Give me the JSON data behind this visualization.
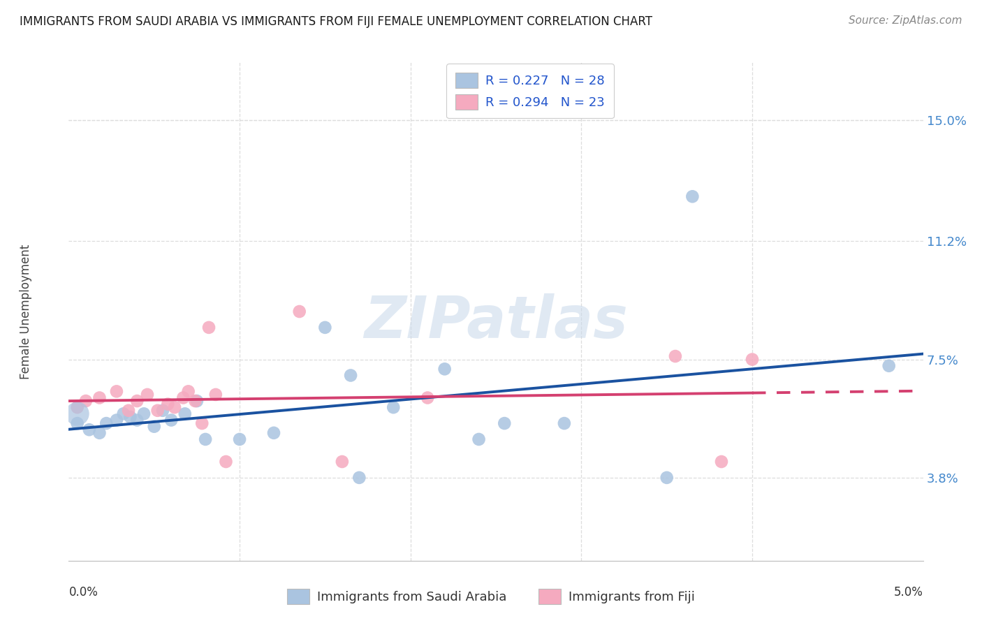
{
  "title": "IMMIGRANTS FROM SAUDI ARABIA VS IMMIGRANTS FROM FIJI FEMALE UNEMPLOYMENT CORRELATION CHART",
  "source": "Source: ZipAtlas.com",
  "ylabel": "Female Unemployment",
  "ylabel_ticks": [
    "3.8%",
    "7.5%",
    "11.2%",
    "15.0%"
  ],
  "ylabel_tick_vals": [
    3.8,
    7.5,
    11.2,
    15.0
  ],
  "xlim": [
    0.0,
    5.0
  ],
  "ylim": [
    1.2,
    16.8
  ],
  "legend1_R": "R = 0.227",
  "legend1_N": "N = 28",
  "legend2_R": "R = 0.294",
  "legend2_N": "N = 23",
  "saudi_color": "#aac4e0",
  "fiji_color": "#f5aabf",
  "saudi_line_color": "#1a52a0",
  "fiji_line_color": "#d44070",
  "watermark": "ZIPatlas",
  "saudi_x": [
    0.05,
    0.12,
    0.18,
    0.22,
    0.28,
    0.32,
    0.36,
    0.4,
    0.44,
    0.5,
    0.55,
    0.6,
    0.68,
    0.75,
    0.8,
    1.0,
    1.2,
    1.5,
    1.65,
    1.7,
    1.9,
    2.2,
    2.4,
    2.55,
    2.9,
    3.5,
    3.65,
    4.8
  ],
  "saudi_y": [
    5.5,
    5.3,
    5.2,
    5.5,
    5.6,
    5.8,
    5.7,
    5.6,
    5.8,
    5.4,
    5.9,
    5.6,
    5.8,
    6.2,
    5.0,
    5.0,
    5.2,
    8.5,
    7.0,
    3.8,
    6.0,
    7.2,
    5.0,
    5.5,
    5.5,
    3.8,
    12.6,
    7.3
  ],
  "fiji_x": [
    0.05,
    0.1,
    0.18,
    0.28,
    0.35,
    0.4,
    0.46,
    0.52,
    0.58,
    0.62,
    0.67,
    0.7,
    0.74,
    0.78,
    0.82,
    0.86,
    0.92,
    1.35,
    1.6,
    2.1,
    3.55,
    3.82,
    4.0
  ],
  "fiji_y": [
    6.0,
    6.2,
    6.3,
    6.5,
    5.9,
    6.2,
    6.4,
    5.9,
    6.1,
    6.0,
    6.3,
    6.5,
    6.2,
    5.5,
    8.5,
    6.4,
    4.3,
    9.0,
    4.3,
    6.3,
    7.6,
    4.3,
    7.5
  ]
}
